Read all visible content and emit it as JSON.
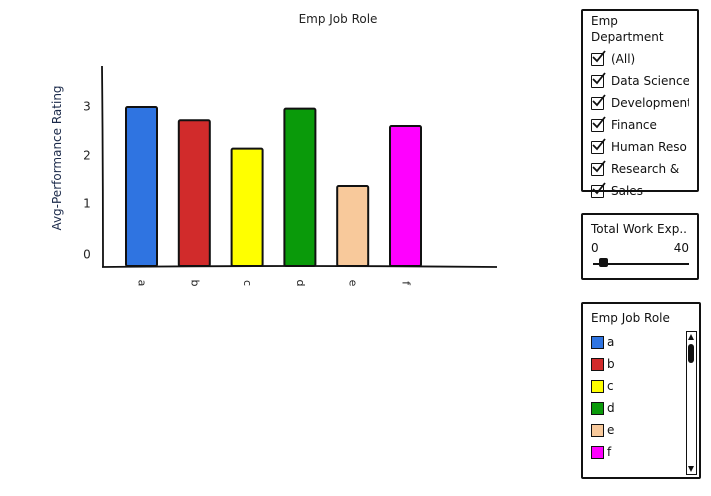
{
  "chart_data": {
    "type": "bar",
    "title": "Emp Job Role",
    "ylabel": "Avg-Performance Rating",
    "xlabel": "",
    "categories": [
      "a",
      "b",
      "c",
      "d",
      "e",
      "f"
    ],
    "values": [
      3.02,
      2.77,
      2.23,
      2.99,
      1.52,
      2.66
    ],
    "colors": [
      "#2f74e1",
      "#d12b2b",
      "#ffff00",
      "#0a9a0a",
      "#f8c99b",
      "#ff00ff"
    ],
    "yticks": [
      "0",
      "1",
      "2",
      "3"
    ],
    "ylim": [
      0,
      3.8
    ],
    "grid": false
  },
  "filters": {
    "department": {
      "title": "Emp Department",
      "items": [
        {
          "label": "(All)",
          "checked": true
        },
        {
          "label": "Data Science",
          "checked": true
        },
        {
          "label": "Development",
          "checked": true
        },
        {
          "label": "Finance",
          "checked": true
        },
        {
          "label": "Human Reso",
          "checked": true
        },
        {
          "label": "Research &",
          "checked": true
        },
        {
          "label": "Sales",
          "checked": true
        }
      ]
    },
    "experience": {
      "title": "Total Work Exp..",
      "min": "0",
      "max": "40"
    }
  },
  "legend": {
    "title": "Emp Job Role",
    "items": [
      {
        "label": "a",
        "color": "#2f74e1"
      },
      {
        "label": "b",
        "color": "#d12b2b"
      },
      {
        "label": "c",
        "color": "#ffff00"
      },
      {
        "label": "d",
        "color": "#0a9a0a"
      },
      {
        "label": "e",
        "color": "#f8c99b"
      },
      {
        "label": "f",
        "color": "#ff00ff"
      }
    ]
  }
}
